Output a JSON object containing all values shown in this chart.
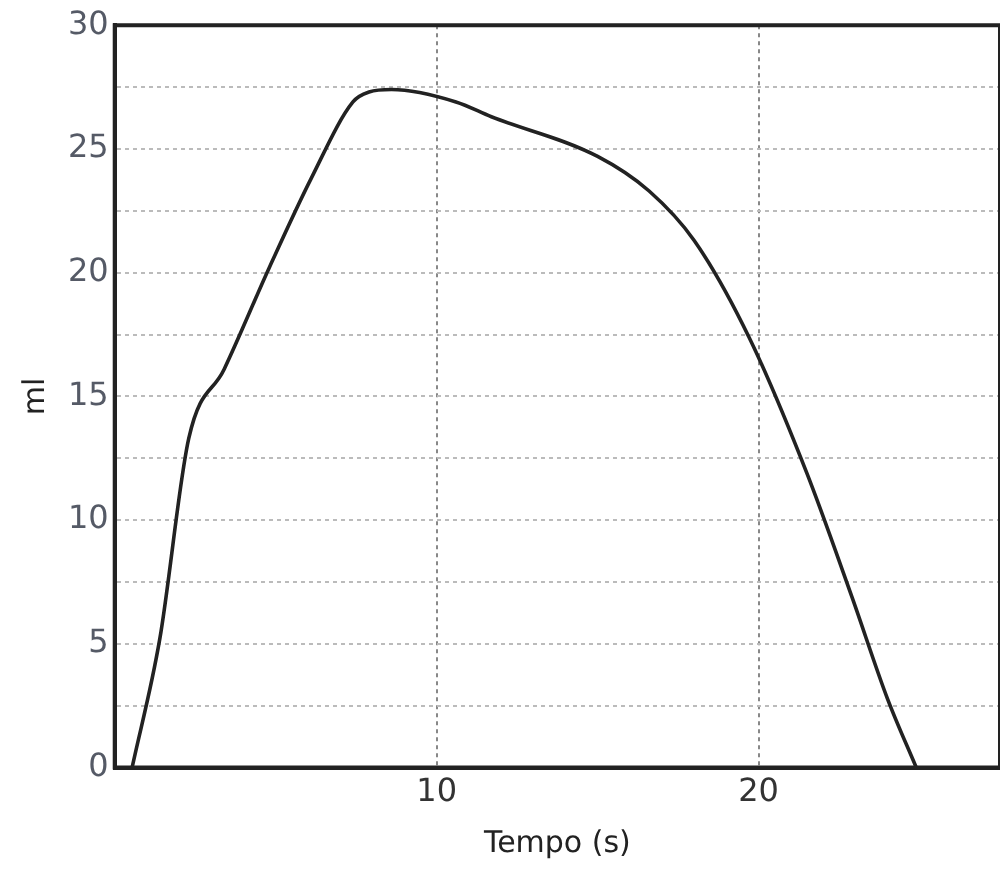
{
  "chart_data": {
    "type": "line",
    "xlabel": "Tempo (s)",
    "ylabel": "ml",
    "x": [
      0.54,
      1.4,
      2.3,
      3.4,
      4.8,
      6.1,
      7.4,
      7.9,
      8.6,
      10.6,
      11.7,
      15.0,
      16.6,
      18.0,
      19.7,
      21.5,
      22.9,
      24.0,
      24.9
    ],
    "series": [
      {
        "color": "#222222",
        "values": [
          0,
          5.2,
          13.3,
          16.1,
          20.2,
          23.8,
          26.9,
          27.3,
          27.4,
          26.9,
          26.3,
          24.7,
          23.3,
          21.3,
          17.4,
          11.9,
          6.9,
          2.8,
          0
        ]
      }
    ],
    "xlim": [
      0,
      27.5
    ],
    "xticks": [
      10,
      20
    ],
    "ylim": [
      0,
      30
    ],
    "yticks": [
      0,
      {
        "value": 2.5,
        "label": null
      },
      5,
      {
        "value": 7.5,
        "label": null
      },
      10,
      {
        "value": 12.5,
        "label": null
      },
      15,
      {
        "value": 17.5,
        "label": null
      },
      20,
      {
        "value": 22.5,
        "label": null
      },
      25,
      {
        "value": 27.5,
        "label": null
      },
      30
    ],
    "grid": true,
    "marker": "none",
    "line_style": "solid",
    "legend": false
  }
}
